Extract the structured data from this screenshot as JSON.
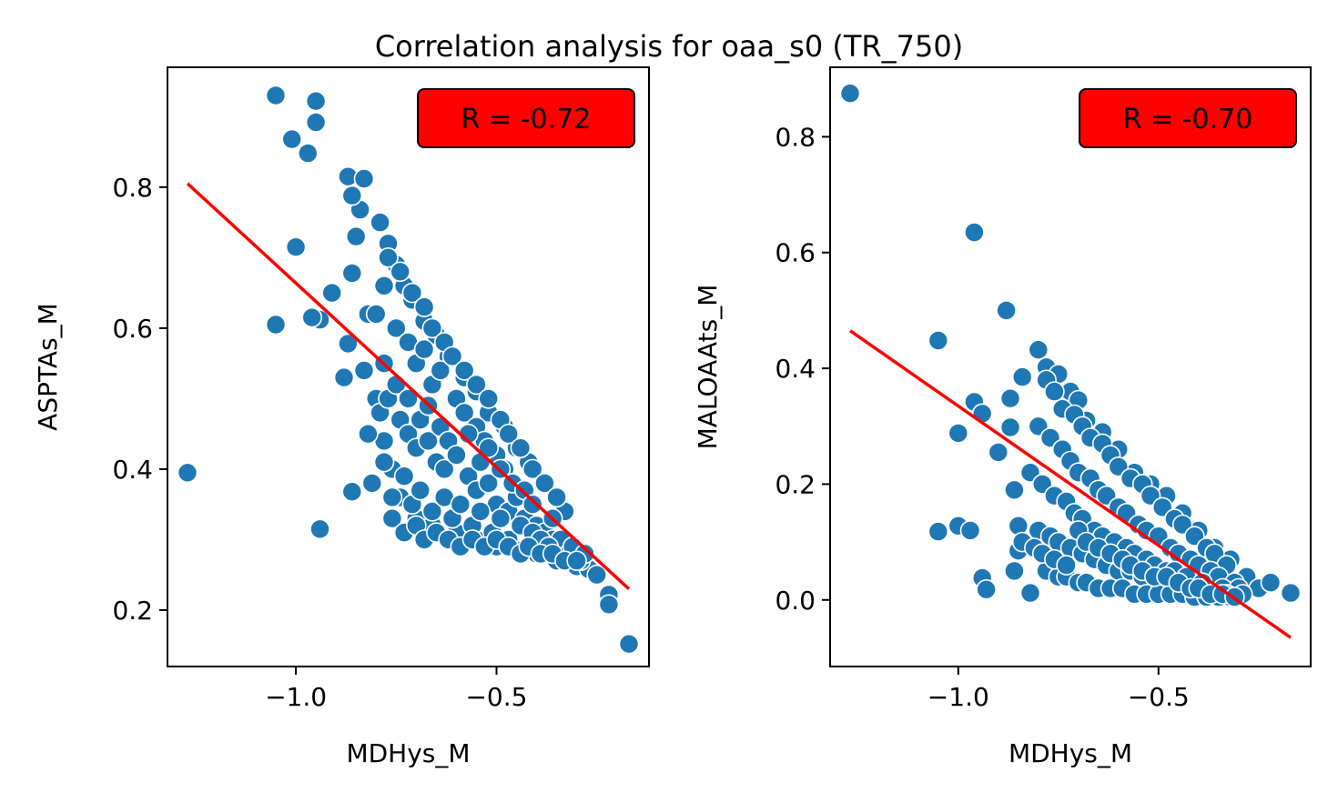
{
  "figure": {
    "title": "Correlation analysis for oaa_s0 (TR_750)"
  },
  "colors": {
    "point": "#1f77b4",
    "point_edge": "#ffffff",
    "fit_line": "#ff0000",
    "badge_fill": "#ff0000",
    "badge_text": "#000000"
  },
  "chart_data": [
    {
      "type": "scatter",
      "xlabel": "MDHys_M",
      "ylabel": "ASPTAs_M",
      "xlim": [
        -1.32,
        -0.12
      ],
      "ylim": [
        0.12,
        0.97
      ],
      "xticks": [
        -1.0,
        -0.5
      ],
      "xtick_labels": [
        "−1.0",
        "−0.5"
      ],
      "yticks": [
        0.2,
        0.4,
        0.6,
        0.8
      ],
      "ytick_labels": [
        "0.2",
        "0.4",
        "0.6",
        "0.8"
      ],
      "annotation": "R = -0.72",
      "fit_line": {
        "x": [
          -1.27,
          -0.17
        ],
        "y": [
          0.805,
          0.23
        ]
      },
      "points": {
        "x": [
          -1.27,
          -1.05,
          -1.05,
          -1.01,
          -1.0,
          -0.97,
          -0.95,
          -0.95,
          -0.94,
          -0.94,
          -0.96,
          -0.91,
          -0.88,
          -0.87,
          -0.87,
          -0.86,
          -0.86,
          -0.85,
          -0.83,
          -0.82,
          -0.84,
          -0.86,
          -0.83,
          -0.8,
          -0.78,
          -0.76,
          -0.74,
          -0.7,
          -0.66,
          -0.6,
          -0.55,
          -0.5,
          -0.45,
          -0.4,
          -0.35,
          -0.3,
          -0.27,
          -0.25,
          -0.22,
          -0.22,
          -0.17,
          -0.79,
          -0.77,
          -0.75,
          -0.73,
          -0.71,
          -0.68,
          -0.65,
          -0.62,
          -0.58,
          -0.55,
          -0.52,
          -0.48,
          -0.45,
          -0.42,
          -0.38,
          -0.35,
          -0.33,
          -0.8,
          -0.78,
          -0.75,
          -0.72,
          -0.7,
          -0.68,
          -0.66,
          -0.64,
          -0.6,
          -0.58,
          -0.55,
          -0.53,
          -0.5,
          -0.48,
          -0.46,
          -0.44,
          -0.82,
          -0.79,
          -0.77,
          -0.74,
          -0.72,
          -0.7,
          -0.67,
          -0.65,
          -0.63,
          -0.6,
          -0.57,
          -0.55,
          -0.52,
          -0.5,
          -0.47,
          -0.45,
          -0.43,
          -0.4,
          -0.38,
          -0.36,
          -0.34,
          -0.81,
          -0.78,
          -0.76,
          -0.73,
          -0.71,
          -0.69,
          -0.66,
          -0.63,
          -0.61,
          -0.59,
          -0.56,
          -0.54,
          -0.51,
          -0.49,
          -0.47,
          -0.44,
          -0.41,
          -0.39,
          -0.37,
          -0.32,
          -0.29,
          -0.78,
          -0.75,
          -0.72,
          -0.69,
          -0.67,
          -0.64,
          -0.62,
          -0.6,
          -0.57,
          -0.54,
          -0.52,
          -0.49,
          -0.46,
          -0.43,
          -0.41,
          -0.36,
          -0.31,
          -0.28,
          -0.76,
          -0.73,
          -0.7,
          -0.68,
          -0.65,
          -0.62,
          -0.59,
          -0.56,
          -0.53,
          -0.5,
          -0.47,
          -0.44,
          -0.42,
          -0.39,
          -0.36,
          -0.33,
          -0.3,
          -0.77,
          -0.74,
          -0.71,
          -0.68,
          -0.66,
          -0.63,
          -0.61,
          -0.58,
          -0.55,
          -0.52,
          -0.49,
          -0.47,
          -0.44,
          -0.41,
          -0.38,
          -0.35
        ],
        "y": [
          0.395,
          0.605,
          0.93,
          0.868,
          0.715,
          0.848,
          0.922,
          0.892,
          0.315,
          0.612,
          0.615,
          0.65,
          0.53,
          0.578,
          0.815,
          0.678,
          0.368,
          0.73,
          0.812,
          0.62,
          0.768,
          0.788,
          0.54,
          0.5,
          0.44,
          0.4,
          0.36,
          0.33,
          0.32,
          0.31,
          0.3,
          0.29,
          0.285,
          0.28,
          0.27,
          0.262,
          0.258,
          0.25,
          0.222,
          0.208,
          0.152,
          0.75,
          0.72,
          0.69,
          0.66,
          0.64,
          0.61,
          0.59,
          0.56,
          0.53,
          0.51,
          0.48,
          0.46,
          0.43,
          0.41,
          0.38,
          0.36,
          0.34,
          0.62,
          0.66,
          0.6,
          0.58,
          0.55,
          0.57,
          0.52,
          0.54,
          0.5,
          0.48,
          0.46,
          0.44,
          0.42,
          0.4,
          0.38,
          0.36,
          0.45,
          0.48,
          0.5,
          0.47,
          0.45,
          0.43,
          0.44,
          0.41,
          0.4,
          0.42,
          0.39,
          0.37,
          0.38,
          0.35,
          0.34,
          0.36,
          0.33,
          0.32,
          0.31,
          0.3,
          0.3,
          0.38,
          0.41,
          0.36,
          0.39,
          0.35,
          0.37,
          0.34,
          0.36,
          0.33,
          0.35,
          0.32,
          0.34,
          0.31,
          0.33,
          0.3,
          0.32,
          0.31,
          0.3,
          0.29,
          0.28,
          0.27,
          0.55,
          0.52,
          0.5,
          0.47,
          0.49,
          0.46,
          0.44,
          0.42,
          0.45,
          0.41,
          0.43,
          0.4,
          0.38,
          0.37,
          0.35,
          0.33,
          0.29,
          0.28,
          0.33,
          0.31,
          0.32,
          0.3,
          0.31,
          0.3,
          0.29,
          0.3,
          0.29,
          0.3,
          0.29,
          0.28,
          0.29,
          0.28,
          0.28,
          0.27,
          0.27,
          0.7,
          0.68,
          0.65,
          0.63,
          0.6,
          0.58,
          0.56,
          0.54,
          0.52,
          0.5,
          0.47,
          0.45,
          0.43,
          0.4,
          0.38,
          0.36
        ]
      }
    },
    {
      "type": "scatter",
      "xlabel": "MDHys_M",
      "ylabel": "MALOAAts_M",
      "xlim": [
        -1.32,
        -0.12
      ],
      "ylim": [
        -0.115,
        0.92
      ],
      "xticks": [
        -1.0,
        -0.5
      ],
      "xtick_labels": [
        "−1.0",
        "−0.5"
      ],
      "yticks": [
        0.0,
        0.2,
        0.4,
        0.6,
        0.8
      ],
      "ytick_labels": [
        "0.0",
        "0.2",
        "0.4",
        "0.6",
        "0.8"
      ],
      "annotation": "R = -0.70",
      "fit_line": {
        "x": [
          -1.27,
          -0.17
        ],
        "y": [
          0.465,
          -0.065
        ]
      },
      "points": {
        "x": [
          -1.27,
          -0.96,
          -1.05,
          -1.05,
          -1.0,
          -1.0,
          -0.97,
          -0.96,
          -0.94,
          -0.94,
          -0.93,
          -0.9,
          -0.88,
          -0.87,
          -0.87,
          -0.86,
          -0.86,
          -0.85,
          -0.85,
          -0.84,
          -0.82,
          -0.8,
          -0.78,
          -0.75,
          -0.72,
          -0.7,
          -0.68,
          -0.64,
          -0.6,
          -0.56,
          -0.52,
          -0.48,
          -0.44,
          -0.4,
          -0.36,
          -0.32,
          -0.28,
          -0.25,
          -0.22,
          -0.17,
          -0.78,
          -0.76,
          -0.74,
          -0.71,
          -0.69,
          -0.67,
          -0.64,
          -0.62,
          -0.6,
          -0.57,
          -0.54,
          -0.52,
          -0.49,
          -0.46,
          -0.44,
          -0.41,
          -0.38,
          -0.36,
          -0.33,
          -0.8,
          -0.77,
          -0.74,
          -0.72,
          -0.7,
          -0.67,
          -0.65,
          -0.63,
          -0.6,
          -0.58,
          -0.55,
          -0.53,
          -0.5,
          -0.47,
          -0.45,
          -0.42,
          -0.4,
          -0.37,
          -0.35,
          -0.31,
          -0.82,
          -0.79,
          -0.76,
          -0.73,
          -0.71,
          -0.69,
          -0.66,
          -0.64,
          -0.61,
          -0.58,
          -0.56,
          -0.53,
          -0.51,
          -0.48,
          -0.46,
          -0.43,
          -0.39,
          -0.34,
          -0.3,
          -0.8,
          -0.77,
          -0.75,
          -0.72,
          -0.69,
          -0.66,
          -0.63,
          -0.6,
          -0.57,
          -0.54,
          -0.51,
          -0.48,
          -0.45,
          -0.42,
          -0.39,
          -0.36,
          -0.33,
          -0.29,
          -0.78,
          -0.75,
          -0.73,
          -0.7,
          -0.68,
          -0.65,
          -0.62,
          -0.59,
          -0.56,
          -0.53,
          -0.5,
          -0.47,
          -0.44,
          -0.41,
          -0.38,
          -0.35,
          -0.32,
          -0.84,
          -0.81,
          -0.79,
          -0.76,
          -0.73,
          -0.7,
          -0.68,
          -0.65,
          -0.62,
          -0.59,
          -0.57,
          -0.54,
          -0.51,
          -0.48,
          -0.45,
          -0.42,
          -0.4,
          -0.37,
          -0.34,
          -0.31
        ],
        "y": [
          0.875,
          0.635,
          0.448,
          0.118,
          0.288,
          0.128,
          0.12,
          0.342,
          0.322,
          0.038,
          0.018,
          0.255,
          0.5,
          0.348,
          0.298,
          0.19,
          0.05,
          0.128,
          0.085,
          0.385,
          0.012,
          0.432,
          0.402,
          0.39,
          0.36,
          0.345,
          0.31,
          0.29,
          0.26,
          0.22,
          0.2,
          0.18,
          0.15,
          0.12,
          0.09,
          0.07,
          0.04,
          0.02,
          0.03,
          0.012,
          0.38,
          0.36,
          0.33,
          0.32,
          0.3,
          0.28,
          0.27,
          0.25,
          0.23,
          0.21,
          0.2,
          0.18,
          0.16,
          0.14,
          0.13,
          0.11,
          0.09,
          0.08,
          0.06,
          0.3,
          0.28,
          0.26,
          0.24,
          0.22,
          0.21,
          0.19,
          0.18,
          0.16,
          0.15,
          0.13,
          0.12,
          0.11,
          0.09,
          0.08,
          0.07,
          0.06,
          0.05,
          0.04,
          0.03,
          0.22,
          0.2,
          0.18,
          0.17,
          0.15,
          0.14,
          0.12,
          0.11,
          0.1,
          0.09,
          0.08,
          0.07,
          0.06,
          0.05,
          0.05,
          0.04,
          0.03,
          0.02,
          0.02,
          0.12,
          0.11,
          0.1,
          0.09,
          0.08,
          0.07,
          0.06,
          0.05,
          0.05,
          0.04,
          0.04,
          0.03,
          0.03,
          0.02,
          0.02,
          0.01,
          0.01,
          0.01,
          0.05,
          0.04,
          0.04,
          0.03,
          0.03,
          0.02,
          0.02,
          0.02,
          0.01,
          0.01,
          0.01,
          0.01,
          0.01,
          0.005,
          0.005,
          0.005,
          0.005,
          0.1,
          0.09,
          0.08,
          0.07,
          0.06,
          0.12,
          0.1,
          0.09,
          0.08,
          0.07,
          0.06,
          0.05,
          0.04,
          0.04,
          0.03,
          0.02,
          0.02,
          0.01,
          0.01,
          0.005
        ]
      }
    }
  ]
}
